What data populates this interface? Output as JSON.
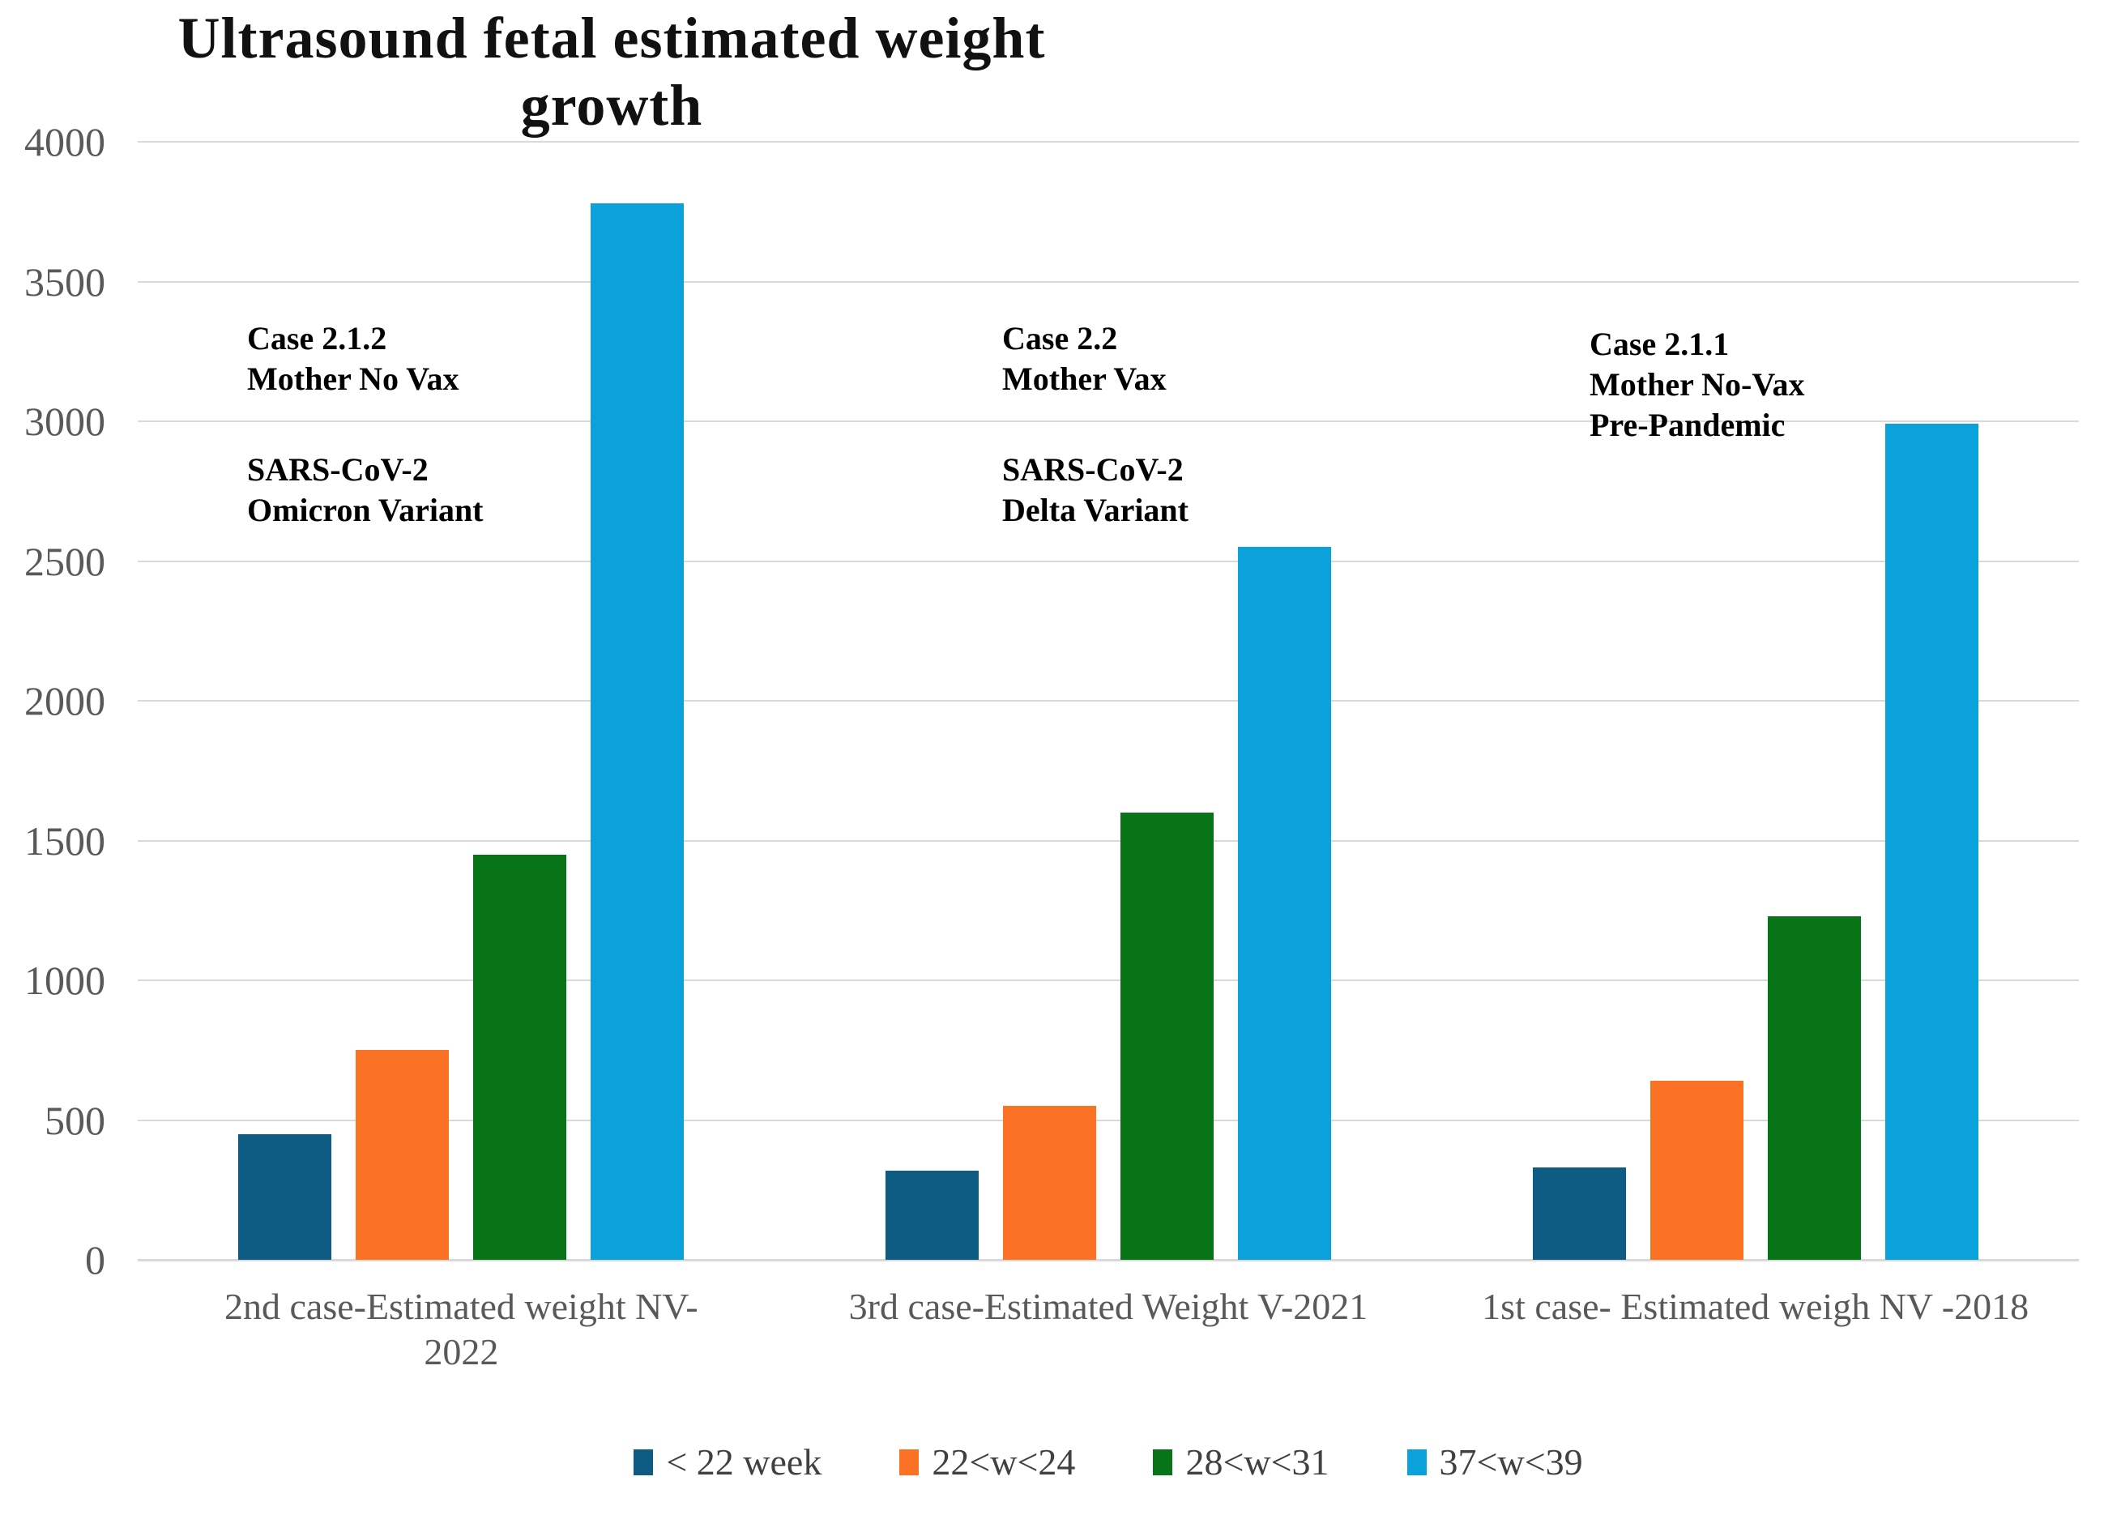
{
  "title": "Ultrasound fetal estimated weight growth",
  "chart_data": {
    "type": "bar",
    "title": "Ultrasound fetal estimated weight growth",
    "categories": [
      "2nd case-Estimated weight NV-2022",
      "3rd case-Estimated Weight V-2021",
      "1st case- Estimated weigh NV -2018"
    ],
    "category_label_lines": [
      [
        "2nd case-Estimated weight NV-",
        "2022"
      ],
      [
        "3rd case-Estimated Weight V-2021"
      ],
      [
        "1st case- Estimated weigh NV -2018"
      ]
    ],
    "series": [
      {
        "name": "< 22 week",
        "color": "#0E5C84",
        "values": [
          450,
          320,
          330
        ]
      },
      {
        "name": "22<w<24",
        "color": "#FB7225",
        "values": [
          750,
          550,
          640
        ]
      },
      {
        "name": "28<w<31",
        "color": "#077418",
        "values": [
          1450,
          1600,
          1230
        ]
      },
      {
        "name": "37<w<39",
        "color": "#0BA1DB",
        "values": [
          3780,
          2550,
          2990
        ]
      }
    ],
    "ylim": [
      0,
      4000
    ],
    "yticks": [
      0,
      500,
      1000,
      1500,
      2000,
      2500,
      3000,
      3500,
      4000
    ],
    "grid": true,
    "legend_position": "bottom",
    "annotations": [
      {
        "block1": [
          "Case 2.1.2",
          "Mother No Vax"
        ],
        "block2": [
          "SARS-CoV-2",
          "Omicron Variant"
        ]
      },
      {
        "block1": [
          "Case 2.2",
          "Mother Vax"
        ],
        "block2": [
          "SARS-CoV-2",
          "Delta Variant"
        ]
      },
      {
        "block1": [
          "Case 2.1.1",
          "Mother No-Vax",
          "Pre-Pandemic"
        ],
        "block2": []
      }
    ]
  },
  "colors": {
    "grid": "#D9D9D9",
    "axis_text": "#595959",
    "annotation_text": "#000000",
    "legend_text": "#404040",
    "background": "#FFFFFF"
  }
}
